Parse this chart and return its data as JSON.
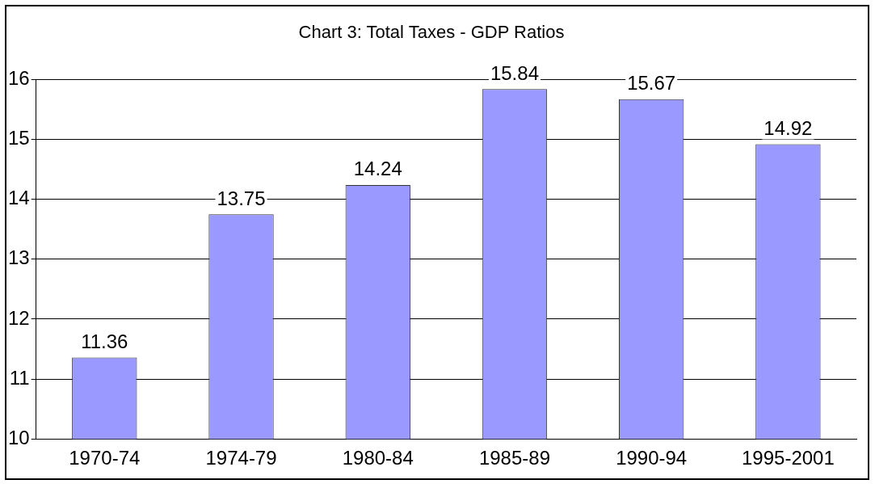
{
  "chart_data": {
    "type": "bar",
    "title": "Chart 3: Total Taxes - GDP Ratios",
    "categories": [
      "1970-74",
      "1974-79",
      "1980-84",
      "1985-89",
      "1990-94",
      "1995-2001"
    ],
    "values": [
      11.36,
      13.75,
      14.24,
      15.84,
      15.67,
      14.92
    ],
    "color": "#9999ff",
    "ylim": [
      10,
      16
    ],
    "yticks": [
      10,
      11,
      12,
      13,
      14,
      15,
      16
    ],
    "grid": "y",
    "data_labels": true,
    "legend": false
  }
}
